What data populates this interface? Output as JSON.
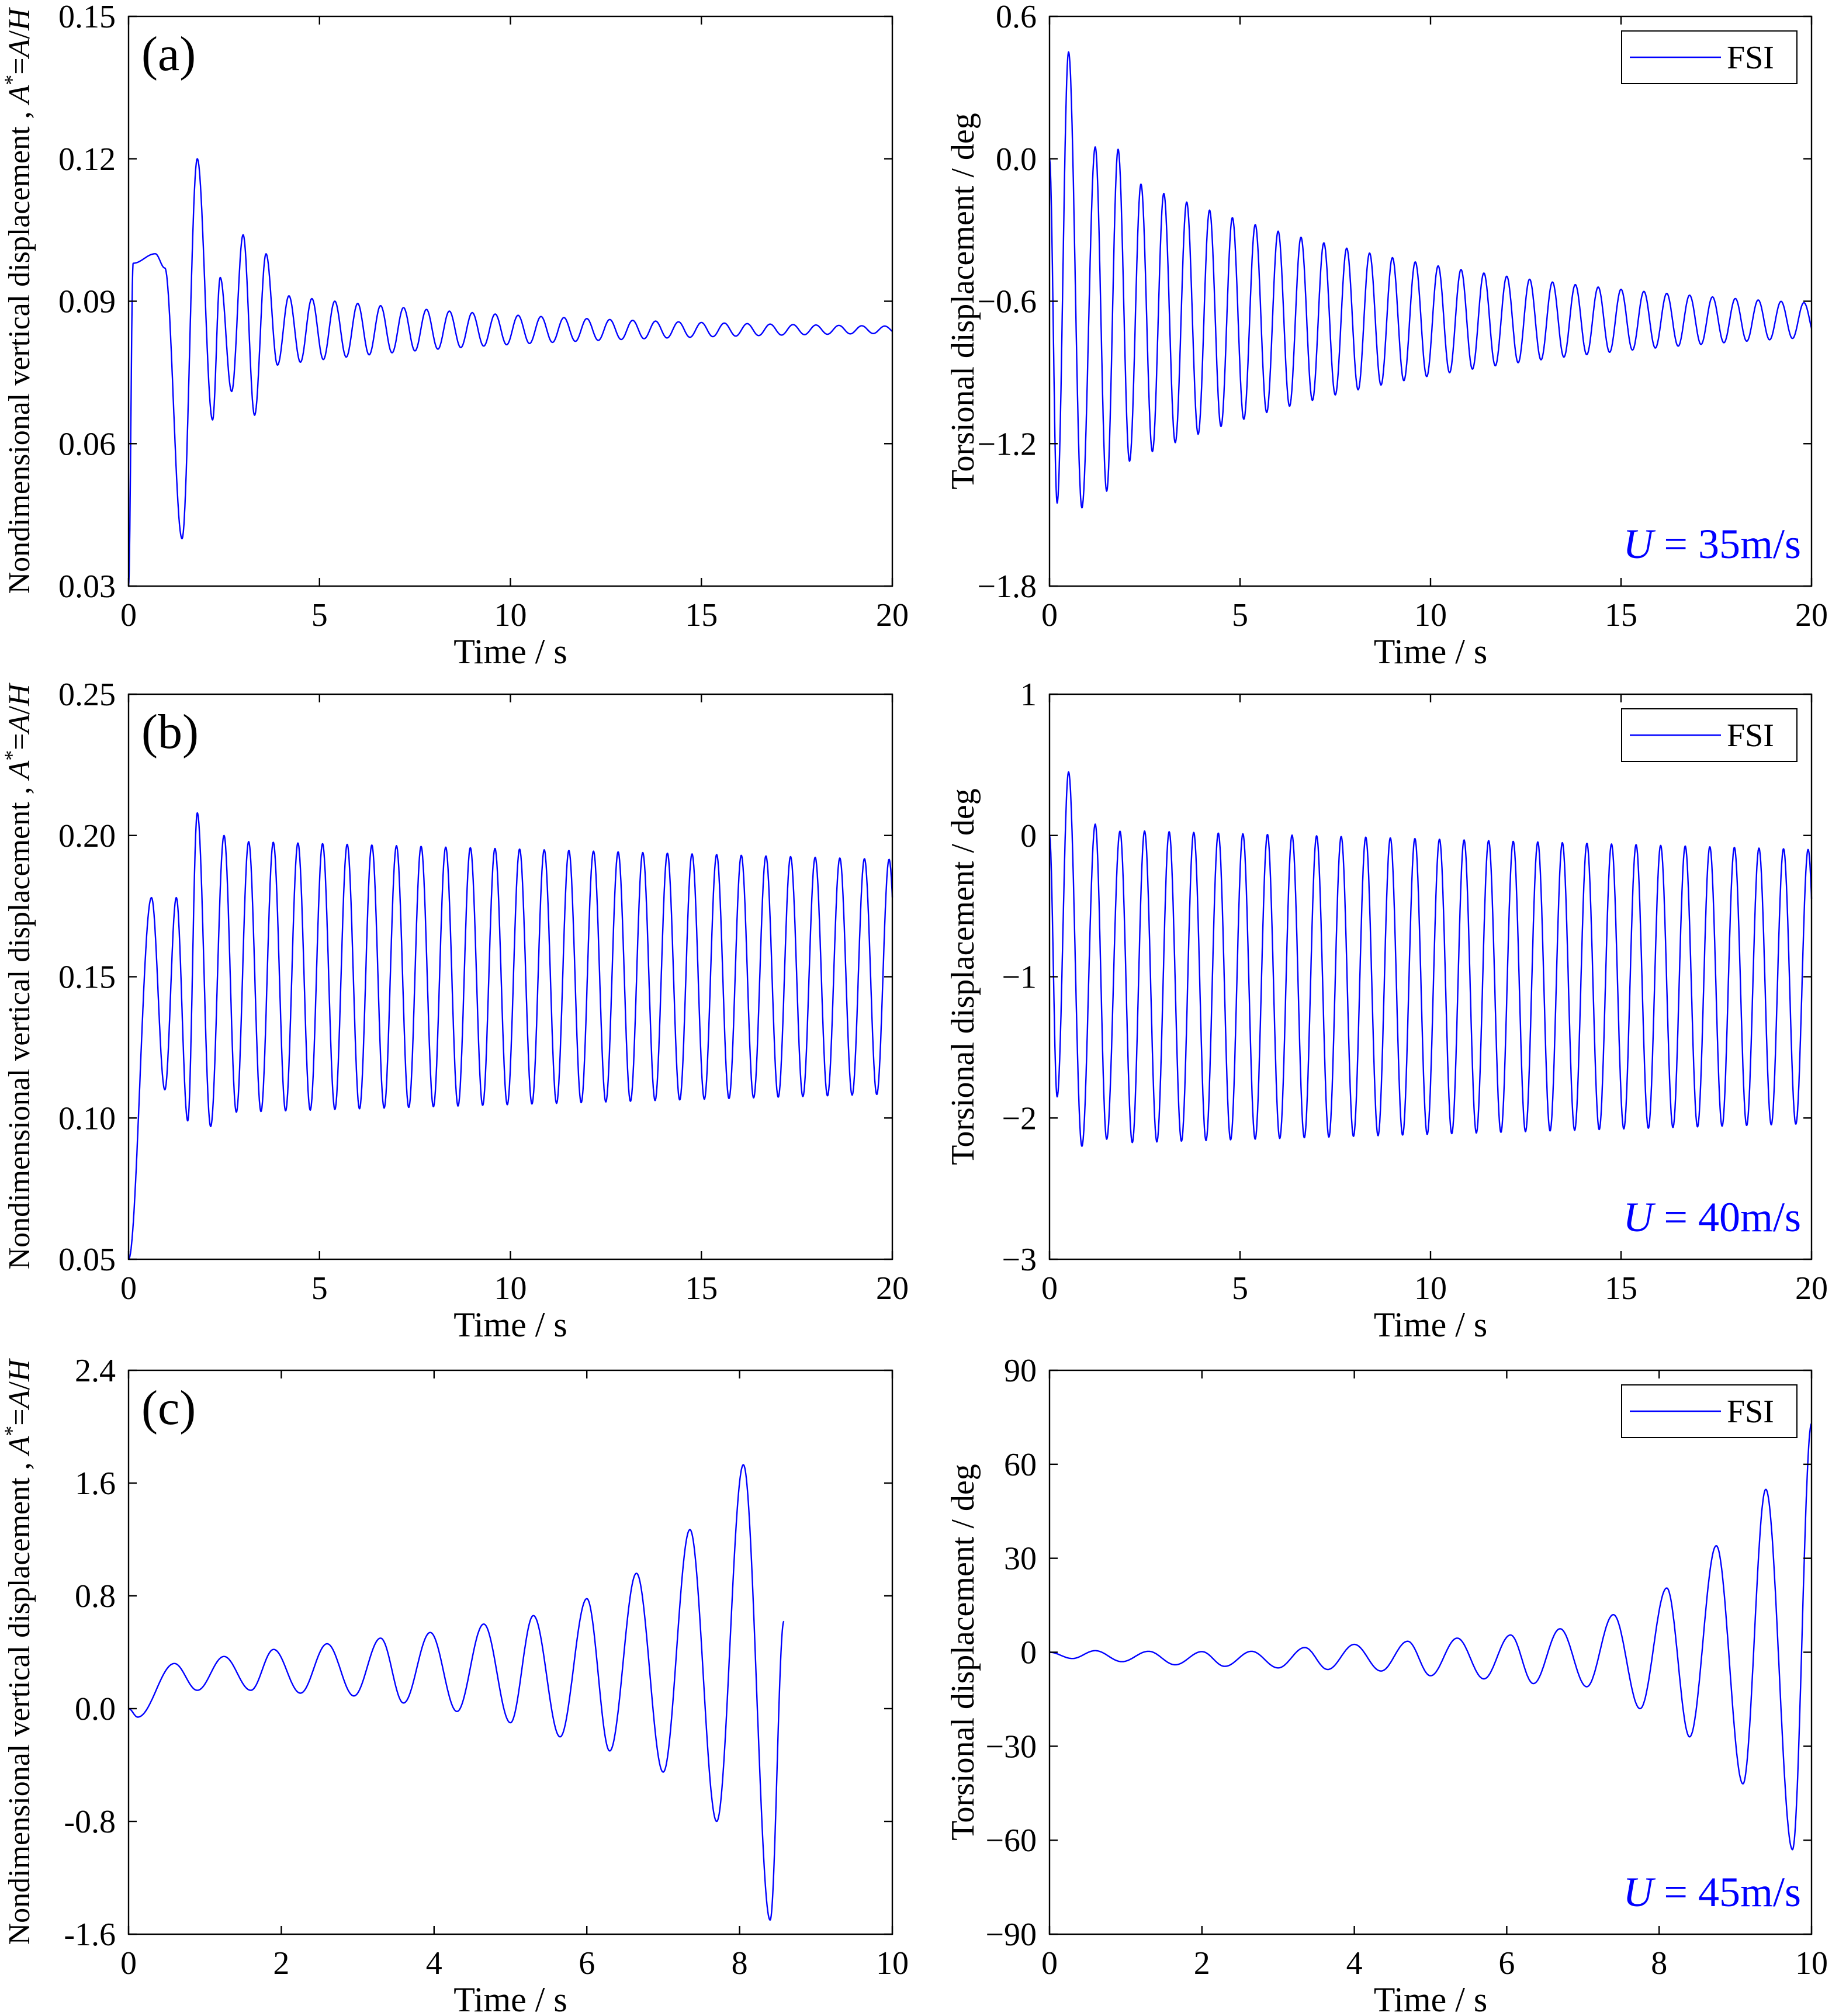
{
  "figure": {
    "line_color": "#0000ff",
    "axis_color": "#000000",
    "annotation_color": "#0000ff"
  },
  "chart_data": [
    {
      "id": "a-left",
      "type": "line",
      "panel_label": "(a)",
      "xlabel": "Time / s",
      "ylabel": "Nondimensional vertical displacement , A*=A/H",
      "xlim": [
        0,
        20
      ],
      "ylim": [
        0.03,
        0.15
      ],
      "xticks": [
        0,
        5,
        10,
        15,
        20
      ],
      "xtick_labels": [
        "0",
        "5",
        "10",
        "15",
        "20"
      ],
      "yticks": [
        0.03,
        0.06,
        0.09,
        0.12,
        0.15
      ],
      "ytick_labels": [
        "0.03",
        "0.06",
        "0.09",
        "0.12",
        "0.15"
      ],
      "series": [
        {
          "name": "FSI",
          "model": "decay",
          "params": {
            "y_start": 0.03,
            "mean": 0.084,
            "amp": 0.013,
            "period": 0.6,
            "tau": 7,
            "extrema": [
              [
                0.12,
                0.098
              ],
              [
                0.7,
                0.1
              ],
              [
                0.95,
                0.097
              ],
              [
                1.4,
                0.04
              ],
              [
                1.8,
                0.12
              ],
              [
                2.2,
                0.065
              ],
              [
                2.4,
                0.095
              ],
              [
                2.7,
                0.071
              ],
              [
                3.0,
                0.104
              ],
              [
                3.3,
                0.066
              ],
              [
                3.6,
                0.1
              ]
            ]
          }
        }
      ]
    },
    {
      "id": "a-right",
      "type": "line",
      "xlabel": "Time / s",
      "ylabel": "Torsional displacement / deg",
      "xlim": [
        0,
        20
      ],
      "ylim": [
        -1.8,
        0.6
      ],
      "xticks": [
        0,
        5,
        10,
        15,
        20
      ],
      "xtick_labels": [
        "0",
        "5",
        "10",
        "15",
        "20"
      ],
      "yticks": [
        -1.8,
        -1.2,
        -0.6,
        0.0,
        0.6
      ],
      "ytick_labels": [
        "−1.8",
        "−1.2",
        "−0.6",
        "0.0",
        "0.6"
      ],
      "legend": [
        "FSI"
      ],
      "annotation": "U = 35m/s",
      "series": [
        {
          "name": "FSI",
          "model": "decay",
          "params": {
            "y_start": 0.0,
            "mean": -0.68,
            "amp": 0.76,
            "period": 0.6,
            "tau": 8.5,
            "extrema": [
              [
                0.2,
                -1.45
              ],
              [
                0.5,
                0.45
              ],
              [
                0.85,
                -1.47
              ],
              [
                1.2,
                0.05
              ],
              [
                1.5,
                -1.4
              ],
              [
                1.8,
                0.04
              ]
            ]
          }
        }
      ]
    },
    {
      "id": "b-left",
      "type": "line",
      "panel_label": "(b)",
      "xlabel": "Time / s",
      "ylabel": "Nondimensional vertical displacement , A*=A/H",
      "xlim": [
        0,
        20
      ],
      "ylim": [
        0.05,
        0.25
      ],
      "xticks": [
        0,
        5,
        10,
        15,
        20
      ],
      "xtick_labels": [
        "0",
        "5",
        "10",
        "15",
        "20"
      ],
      "yticks": [
        0.05,
        0.1,
        0.15,
        0.2,
        0.25
      ],
      "ytick_labels": [
        "0.05",
        "0.10",
        "0.15",
        "0.20",
        "0.25"
      ],
      "series": [
        {
          "name": "FSI",
          "model": "steady",
          "params": {
            "y_start": 0.05,
            "mean": 0.15,
            "amp": 0.049,
            "amp_end": 0.0415,
            "period": 0.645,
            "extrema": [
              [
                0.6,
                0.178
              ],
              [
                0.95,
                0.11
              ],
              [
                1.25,
                0.178
              ],
              [
                1.55,
                0.099
              ],
              [
                1.8,
                0.208
              ],
              [
                2.15,
                0.097
              ],
              [
                2.5,
                0.2
              ]
            ]
          }
        }
      ]
    },
    {
      "id": "b-right",
      "type": "line",
      "xlabel": "Time / s",
      "ylabel": "Torsional displacement / deg",
      "xlim": [
        0,
        20
      ],
      "ylim": [
        -3,
        1
      ],
      "xticks": [
        0,
        5,
        10,
        15,
        20
      ],
      "xtick_labels": [
        "0",
        "5",
        "10",
        "15",
        "20"
      ],
      "yticks": [
        -3,
        -2,
        -1,
        0,
        1
      ],
      "ytick_labels": [
        "−3",
        "−2",
        "−1",
        "0",
        "1"
      ],
      "legend": [
        "FSI"
      ],
      "annotation": "U = 40m/s",
      "series": [
        {
          "name": "FSI",
          "model": "steady",
          "params": {
            "y_start": 0.0,
            "mean": -1.07,
            "amp": 1.12,
            "amp_end": 0.97,
            "period": 0.645,
            "extrema": [
              [
                0.2,
                -1.85
              ],
              [
                0.5,
                0.45
              ],
              [
                0.85,
                -2.2
              ],
              [
                1.2,
                0.08
              ],
              [
                1.5,
                -2.15
              ],
              [
                1.85,
                0.03
              ]
            ]
          }
        }
      ]
    },
    {
      "id": "c-left",
      "type": "line",
      "panel_label": "(c)",
      "xlabel": "Time / s",
      "ylabel": "Nondimensional vertical displacement , A*=A/H",
      "xlim": [
        0,
        10
      ],
      "ylim": [
        -1.6,
        2.4
      ],
      "xticks": [
        0,
        2,
        4,
        6,
        8,
        10
      ],
      "xtick_labels": [
        "0",
        "2",
        "4",
        "6",
        "8",
        "10"
      ],
      "yticks": [
        -1.6,
        -0.8,
        0.0,
        0.8,
        1.6,
        2.4
      ],
      "ytick_labels": [
        "-1.6",
        "-0.8",
        "0.0",
        "0.8",
        "1.6",
        "2.4"
      ],
      "series": [
        {
          "name": "FSI",
          "model": "grow",
          "x_end": 8.58,
          "params": {
            "period": 0.67,
            "extrema": [
              [
                0.0,
                0.0
              ],
              [
                0.12,
                -0.06
              ],
              [
                0.6,
                0.32
              ],
              [
                0.9,
                0.13
              ],
              [
                1.25,
                0.37
              ],
              [
                1.6,
                0.13
              ],
              [
                1.9,
                0.42
              ],
              [
                2.25,
                0.11
              ],
              [
                2.6,
                0.46
              ],
              [
                2.95,
                0.09
              ],
              [
                3.3,
                0.5
              ],
              [
                3.6,
                0.04
              ],
              [
                3.95,
                0.54
              ],
              [
                4.3,
                -0.02
              ],
              [
                4.65,
                0.6
              ],
              [
                5.0,
                -0.1
              ],
              [
                5.3,
                0.66
              ],
              [
                5.65,
                -0.2
              ],
              [
                6.0,
                0.78
              ],
              [
                6.3,
                -0.3
              ],
              [
                6.65,
                0.96
              ],
              [
                7.0,
                -0.45
              ],
              [
                7.35,
                1.27
              ],
              [
                7.7,
                -0.8
              ],
              [
                8.05,
                1.73
              ],
              [
                8.4,
                -1.5
              ],
              [
                8.58,
                0.62
              ]
            ]
          }
        }
      ]
    },
    {
      "id": "c-right",
      "type": "line",
      "xlabel": "Time / s",
      "ylabel": "Torsional displacement / deg",
      "xlim": [
        0,
        10
      ],
      "ylim": [
        -90,
        90
      ],
      "xticks": [
        0,
        2,
        4,
        6,
        8,
        10
      ],
      "xtick_labels": [
        "0",
        "2",
        "4",
        "6",
        "8",
        "10"
      ],
      "yticks": [
        -90,
        -60,
        -30,
        0,
        30,
        60,
        90
      ],
      "ytick_labels": [
        "−90",
        "−60",
        "−30",
        "0",
        "30",
        "60",
        "90"
      ],
      "legend": [
        "FSI"
      ],
      "annotation": "U = 45m/s",
      "series": [
        {
          "name": "FSI",
          "model": "grow",
          "x_end": 10.0,
          "params": {
            "period": 0.67,
            "extrema": [
              [
                0.0,
                0.0
              ],
              [
                0.3,
                -2.0
              ],
              [
                0.6,
                0.5
              ],
              [
                0.95,
                -3.0
              ],
              [
                1.3,
                0.3
              ],
              [
                1.65,
                -4.0
              ],
              [
                2.0,
                0.2
              ],
              [
                2.3,
                -4.5
              ],
              [
                2.65,
                0.3
              ],
              [
                3.0,
                -5.0
              ],
              [
                3.35,
                1.5
              ],
              [
                3.65,
                -5.5
              ],
              [
                4.0,
                2.5
              ],
              [
                4.35,
                -6.0
              ],
              [
                4.7,
                3.5
              ],
              [
                5.0,
                -7.5
              ],
              [
                5.35,
                4.5
              ],
              [
                5.7,
                -8.5
              ],
              [
                6.05,
                5.5
              ],
              [
                6.35,
                -10.0
              ],
              [
                6.7,
                7.5
              ],
              [
                7.05,
                -11.0
              ],
              [
                7.4,
                12.0
              ],
              [
                7.75,
                -18.0
              ],
              [
                8.1,
                20.5
              ],
              [
                8.4,
                -27.0
              ],
              [
                8.75,
                34.0
              ],
              [
                9.1,
                -42.0
              ],
              [
                9.4,
                52.0
              ],
              [
                9.75,
                -63.0
              ],
              [
                10.0,
                73.0
              ]
            ]
          }
        }
      ]
    }
  ]
}
